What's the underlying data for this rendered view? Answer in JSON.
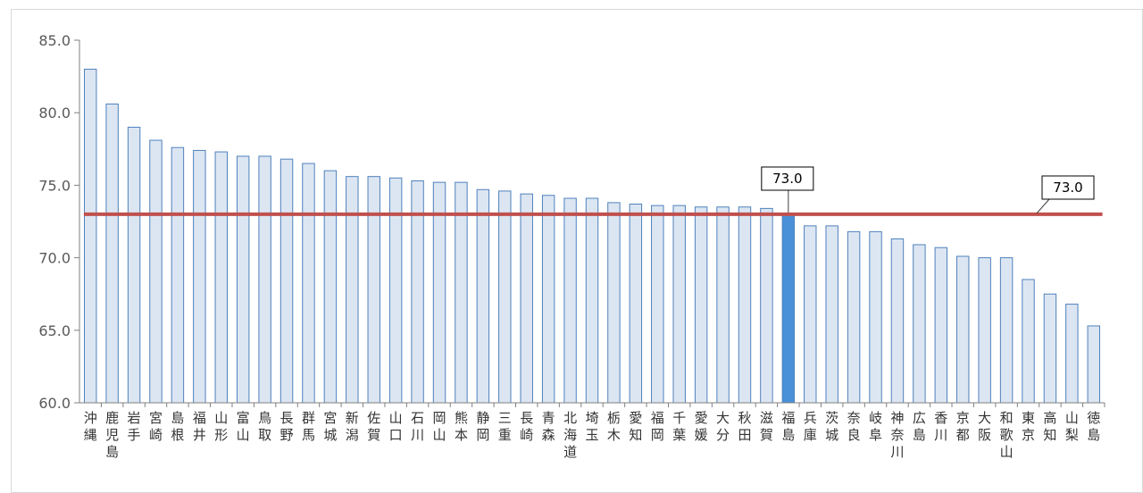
{
  "chart_data": {
    "type": "bar",
    "categories": [
      "沖縄",
      "鹿児島",
      "岩手",
      "宮崎",
      "島根",
      "福井",
      "山形",
      "富山",
      "鳥取",
      "長野",
      "群馬",
      "宮城",
      "新潟",
      "佐賀",
      "山口",
      "石川",
      "岡山",
      "熊本",
      "静岡",
      "三重",
      "長崎",
      "青森",
      "北海道",
      "埼玉",
      "栃木",
      "愛知",
      "福岡",
      "千葉",
      "愛媛",
      "大分",
      "秋田",
      "滋賀",
      "福島",
      "兵庫",
      "茨城",
      "奈良",
      "岐阜",
      "神奈川",
      "広島",
      "香川",
      "京都",
      "大阪",
      "和歌山",
      "東京",
      "高知",
      "山梨",
      "徳島"
    ],
    "values": [
      83.0,
      80.6,
      79.0,
      78.1,
      77.6,
      77.4,
      77.3,
      77.0,
      77.0,
      76.8,
      76.5,
      76.0,
      75.6,
      75.6,
      75.5,
      75.3,
      75.2,
      75.2,
      74.7,
      74.6,
      74.4,
      74.3,
      74.1,
      74.1,
      73.8,
      73.7,
      73.6,
      73.6,
      73.5,
      73.5,
      73.5,
      73.4,
      73.0,
      72.2,
      72.2,
      71.8,
      71.8,
      71.3,
      70.9,
      70.7,
      70.1,
      70.0,
      70.0,
      68.5,
      67.5,
      66.8,
      65.3
    ],
    "highlight_category": "福島",
    "reference_line": {
      "value": 73.0,
      "label": "73.0",
      "color": "#c0504d"
    },
    "highlight_label": "73.0",
    "ylim": [
      60.0,
      85.0
    ],
    "yticks": [
      "60.0",
      "65.0",
      "70.0",
      "75.0",
      "80.0",
      "85.0"
    ],
    "bar_fill": "#dce6f2",
    "bar_stroke": "#4f81bd",
    "highlight_fill": "#4a90d9",
    "title": "",
    "xlabel": "",
    "ylabel": "",
    "grid": false
  }
}
